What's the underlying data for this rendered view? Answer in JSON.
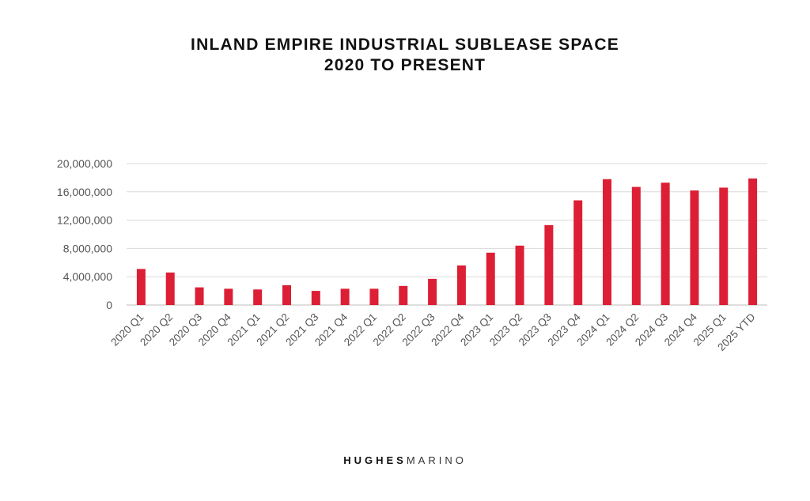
{
  "chart_data": {
    "type": "bar",
    "title": "INLAND EMPIRE INDUSTRIAL SUBLEASE SPACE",
    "subtitle": "2020 TO PRESENT",
    "xlabel": "",
    "ylabel": "",
    "ylim": [
      0,
      20000000
    ],
    "yticks": [
      0,
      4000000,
      8000000,
      12000000,
      16000000,
      20000000
    ],
    "ytick_labels": [
      "0",
      "4,000,000",
      "8,000,000",
      "12,000,000",
      "16,000,000",
      "20,000,000"
    ],
    "grid": true,
    "bar_color": "#dc1f35",
    "categories": [
      "2020 Q1",
      "2020 Q2",
      "2020 Q3",
      "2020 Q4",
      "2021 Q1",
      "2021 Q2",
      "2021 Q3",
      "2021 Q4",
      "2022 Q1",
      "2022 Q2",
      "2022 Q3",
      "2022 Q4",
      "2023 Q1",
      "2023 Q2",
      "2023 Q3",
      "2023 Q4",
      "2024 Q1",
      "2024 Q2",
      "2024 Q3",
      "2024 Q4",
      "2025 Q1",
      "2025 YTD"
    ],
    "values": [
      5100000,
      4600000,
      2500000,
      2300000,
      2200000,
      2800000,
      2000000,
      2300000,
      2300000,
      2700000,
      3700000,
      5600000,
      7400000,
      8400000,
      11300000,
      14800000,
      17800000,
      16700000,
      17300000,
      16200000,
      16600000,
      17900000
    ]
  },
  "footer": {
    "brand_bold": "HUGHES",
    "brand_light": "MARINO"
  }
}
